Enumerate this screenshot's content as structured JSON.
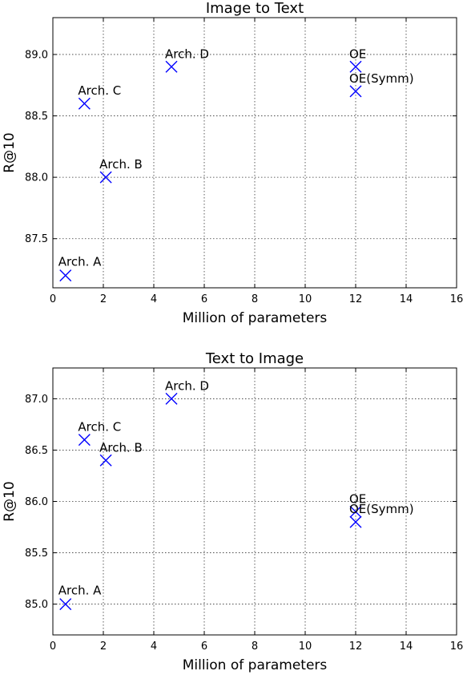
{
  "chart_data": [
    {
      "type": "scatter",
      "title": "Image to Text",
      "xlabel": "Million of parameters",
      "ylabel": "R@10",
      "xlim": [
        0,
        16
      ],
      "ylim": [
        87.1,
        89.3
      ],
      "xticks": [
        "0",
        "2",
        "4",
        "6",
        "8",
        "10",
        "12",
        "14",
        "16"
      ],
      "yticks": [
        "87.5",
        "88.0",
        "88.5",
        "89.0"
      ],
      "grid": true,
      "marker": "x",
      "marker_color": "#0000ff",
      "points": [
        {
          "label": "Arch. A",
          "x": 0.5,
          "y": 87.2
        },
        {
          "label": "Arch. B",
          "x": 2.1,
          "y": 88.0
        },
        {
          "label": "Arch. C",
          "x": 1.25,
          "y": 88.6
        },
        {
          "label": "Arch. D",
          "x": 4.7,
          "y": 88.9
        },
        {
          "label": "OE",
          "x": 12.0,
          "y": 88.9
        },
        {
          "label": "OE(Symm)",
          "x": 12.0,
          "y": 88.7
        }
      ]
    },
    {
      "type": "scatter",
      "title": "Text to Image",
      "xlabel": "Million of parameters",
      "ylabel": "R@10",
      "xlim": [
        0,
        16
      ],
      "ylim": [
        84.7,
        87.3
      ],
      "xticks": [
        "0",
        "2",
        "4",
        "6",
        "8",
        "10",
        "12",
        "14",
        "16"
      ],
      "yticks": [
        "85.0",
        "85.5",
        "86.0",
        "86.5",
        "87.0"
      ],
      "grid": true,
      "marker": "x",
      "marker_color": "#0000ff",
      "points": [
        {
          "label": "Arch. A",
          "x": 0.5,
          "y": 85.0
        },
        {
          "label": "Arch. B",
          "x": 2.1,
          "y": 86.4
        },
        {
          "label": "Arch. C",
          "x": 1.25,
          "y": 86.6
        },
        {
          "label": "Arch. D",
          "x": 4.7,
          "y": 87.0
        },
        {
          "label": "OE",
          "x": 12.0,
          "y": 85.9
        },
        {
          "label": "OE(Symm)",
          "x": 12.0,
          "y": 85.8
        }
      ]
    }
  ]
}
